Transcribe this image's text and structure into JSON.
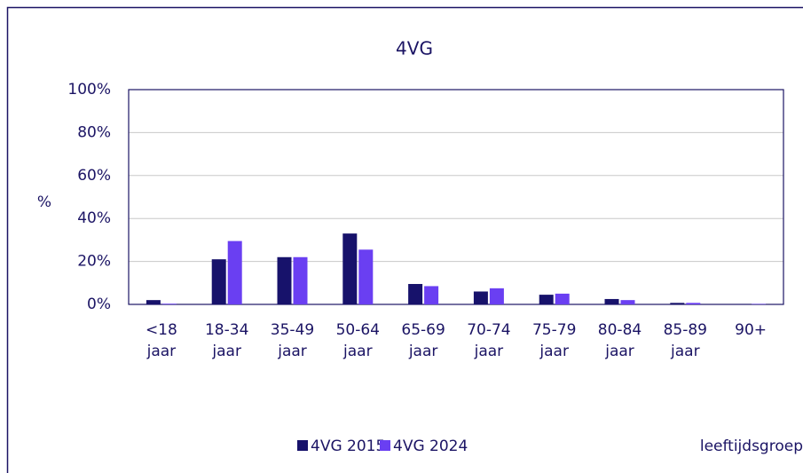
{
  "chart_data": {
    "type": "bar",
    "title": "4VG",
    "y_label": "%",
    "x_label": "leeftijdsgroep",
    "categories": [
      "<18 jaar",
      "18-34 jaar",
      "35-49 jaar",
      "50-64 jaar",
      "65-69 jaar",
      "70-74 jaar",
      "75-79 jaar",
      "80-84 jaar",
      "85-89 jaar",
      "90+"
    ],
    "series": [
      {
        "name": "4VG 2015",
        "color": "#17126b",
        "values": [
          2,
          21,
          22,
          33,
          9.5,
          6,
          4.5,
          2.5,
          0.7,
          0.2
        ]
      },
      {
        "name": "4VG 2024",
        "color": "#6a3ff2",
        "values": [
          0.3,
          29.5,
          22,
          25.5,
          8.5,
          7.5,
          5,
          2,
          0.7,
          0.2
        ]
      }
    ],
    "ylim": [
      0,
      100
    ],
    "yticks": [
      {
        "value": 0,
        "label": "0%"
      },
      {
        "value": 20,
        "label": "20%"
      },
      {
        "value": 40,
        "label": "40%"
      },
      {
        "value": 60,
        "label": "60%"
      },
      {
        "value": 80,
        "label": "80%"
      },
      {
        "value": 100,
        "label": "100%"
      }
    ],
    "grid": true
  }
}
